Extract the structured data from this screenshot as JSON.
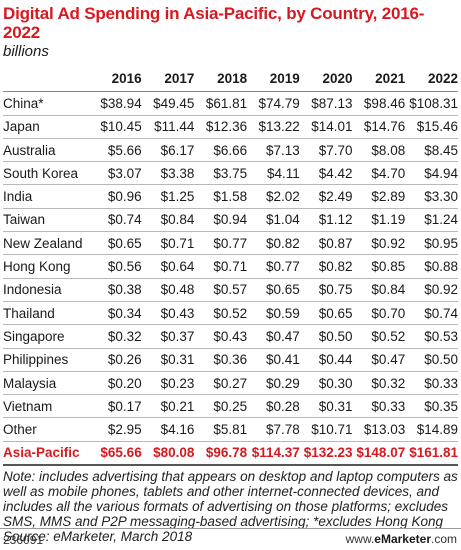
{
  "chart_data": {
    "type": "table",
    "title": "Digital Ad Spending in Asia-Pacific, by Country, 2016-2022",
    "subtitle": "billions",
    "columns": [
      "",
      "2016",
      "2017",
      "2018",
      "2019",
      "2020",
      "2021",
      "2022"
    ],
    "rows": [
      {
        "label": "China*",
        "values": [
          "$38.94",
          "$49.45",
          "$61.81",
          "$74.79",
          "$87.13",
          "$98.46",
          "$108.31"
        ]
      },
      {
        "label": "Japan",
        "values": [
          "$10.45",
          "$11.44",
          "$12.36",
          "$13.22",
          "$14.01",
          "$14.76",
          "$15.46"
        ]
      },
      {
        "label": "Australia",
        "values": [
          "$5.66",
          "$6.17",
          "$6.66",
          "$7.13",
          "$7.70",
          "$8.08",
          "$8.45"
        ]
      },
      {
        "label": "South Korea",
        "values": [
          "$3.07",
          "$3.38",
          "$3.75",
          "$4.11",
          "$4.42",
          "$4.70",
          "$4.94"
        ]
      },
      {
        "label": "India",
        "values": [
          "$0.96",
          "$1.25",
          "$1.58",
          "$2.02",
          "$2.49",
          "$2.89",
          "$3.30"
        ]
      },
      {
        "label": "Taiwan",
        "values": [
          "$0.74",
          "$0.84",
          "$0.94",
          "$1.04",
          "$1.12",
          "$1.19",
          "$1.24"
        ]
      },
      {
        "label": "New Zealand",
        "values": [
          "$0.65",
          "$0.71",
          "$0.77",
          "$0.82",
          "$0.87",
          "$0.92",
          "$0.95"
        ]
      },
      {
        "label": "Hong Kong",
        "values": [
          "$0.56",
          "$0.64",
          "$0.71",
          "$0.77",
          "$0.82",
          "$0.85",
          "$0.88"
        ]
      },
      {
        "label": "Indonesia",
        "values": [
          "$0.38",
          "$0.48",
          "$0.57",
          "$0.65",
          "$0.75",
          "$0.84",
          "$0.92"
        ]
      },
      {
        "label": "Thailand",
        "values": [
          "$0.34",
          "$0.43",
          "$0.52",
          "$0.59",
          "$0.65",
          "$0.70",
          "$0.74"
        ]
      },
      {
        "label": "Singapore",
        "values": [
          "$0.32",
          "$0.37",
          "$0.43",
          "$0.47",
          "$0.50",
          "$0.52",
          "$0.53"
        ]
      },
      {
        "label": "Philippines",
        "values": [
          "$0.26",
          "$0.31",
          "$0.36",
          "$0.41",
          "$0.44",
          "$0.47",
          "$0.50"
        ]
      },
      {
        "label": "Malaysia",
        "values": [
          "$0.20",
          "$0.23",
          "$0.27",
          "$0.29",
          "$0.30",
          "$0.32",
          "$0.33"
        ]
      },
      {
        "label": "Vietnam",
        "values": [
          "$0.17",
          "$0.21",
          "$0.25",
          "$0.28",
          "$0.31",
          "$0.33",
          "$0.35"
        ]
      },
      {
        "label": "Other",
        "values": [
          "$2.95",
          "$4.16",
          "$5.81",
          "$7.78",
          "$10.71",
          "$13.03",
          "$14.89"
        ]
      }
    ],
    "total": {
      "label": "Asia-Pacific",
      "values": [
        "$65.66",
        "$80.08",
        "$96.78",
        "$114.37",
        "$132.23",
        "$148.07",
        "$161.81"
      ]
    },
    "note": "Note: includes advertising that appears on desktop and laptop computers as well as mobile phones, tablets and other internet-connected devices, and includes all the various formats of advertising on those platforms; excludes SMS, MMS and P2P messaging-based advertising; *excludes Hong Kong",
    "source": "Source: eMarketer, March 2018"
  },
  "footer": {
    "chart_id": "236091",
    "brand_prefix": "www.",
    "brand_name": "eMarketer",
    "brand_suffix": ".com"
  },
  "colors": {
    "accent": "#d71920",
    "text": "#1a1a1a"
  }
}
